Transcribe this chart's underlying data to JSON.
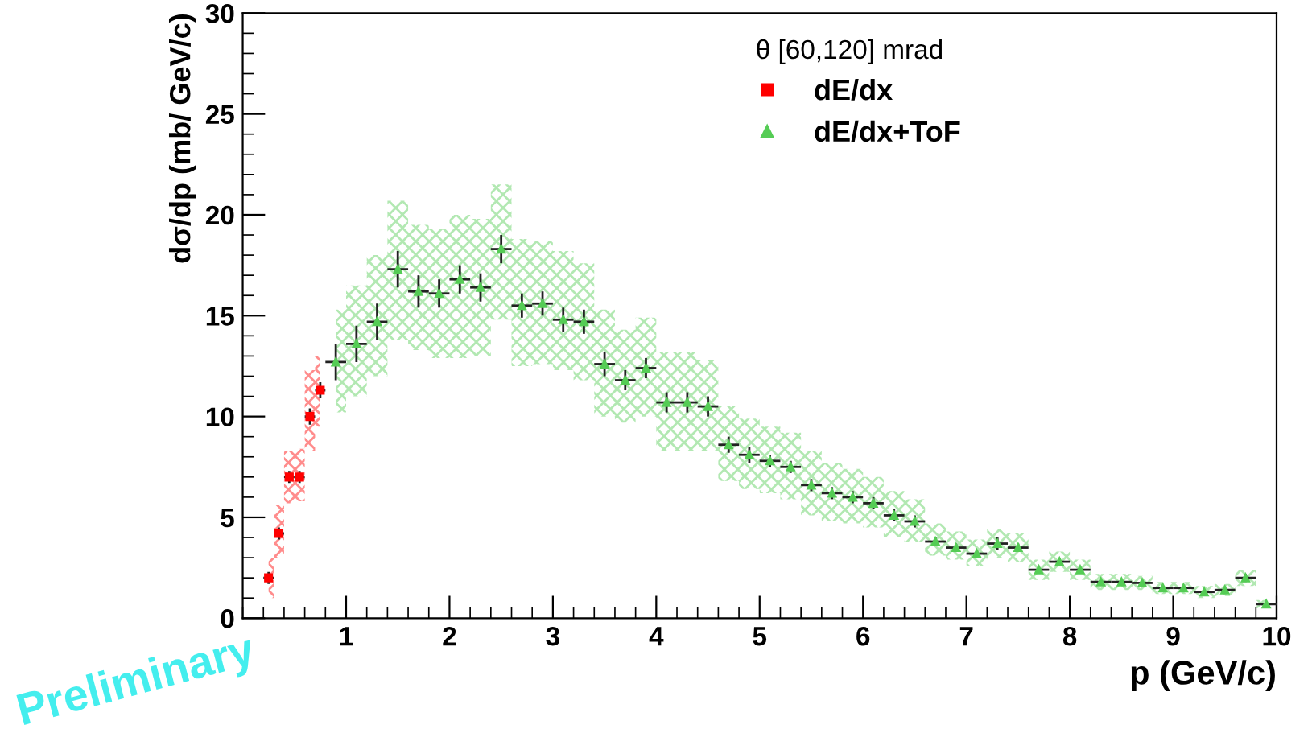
{
  "chart_data": {
    "type": "scatter",
    "xlabel": "p (GeV/c)",
    "ylabel": "dσ/dp (mb/ GeV/c)",
    "legend_title": "θ [60,120] mrad",
    "legend": "top right",
    "grid": false,
    "xlim": [
      0,
      10
    ],
    "xticks": [
      1,
      2,
      3,
      4,
      5,
      6,
      7,
      8,
      9,
      10
    ],
    "ylim": [
      0,
      30
    ],
    "yticks": [
      0,
      5,
      10,
      15,
      20,
      25,
      30
    ],
    "annotations": [
      "Preliminary"
    ],
    "series": [
      {
        "name": "dE/dx",
        "color": "#ff0000",
        "marker": "square",
        "x": [
          0.25,
          0.35,
          0.45,
          0.55,
          0.65,
          0.75
        ],
        "values": [
          2.0,
          4.2,
          7.0,
          7.0,
          10.0,
          11.3
        ],
        "errors": [
          0.3,
          0.3,
          0.3,
          0.3,
          0.4,
          0.4
        ],
        "xerrors": [
          0.05,
          0.05,
          0.05,
          0.05,
          0.05,
          0.05
        ],
        "lower": [
          1.0,
          3.0,
          5.7,
          5.8,
          8.3,
          9.5
        ],
        "upper": [
          3.0,
          5.6,
          8.3,
          8.4,
          12.3,
          13.0
        ]
      },
      {
        "name": "dE/dx+ToF",
        "color": "#55cc55",
        "marker": "triangle",
        "x": [
          0.9,
          1.1,
          1.3,
          1.5,
          1.7,
          1.9,
          2.1,
          2.3,
          2.5,
          2.7,
          2.9,
          3.1,
          3.3,
          3.5,
          3.7,
          3.9,
          4.1,
          4.3,
          4.5,
          4.7,
          4.9,
          5.1,
          5.3,
          5.5,
          5.7,
          5.9,
          6.1,
          6.3,
          6.5,
          6.7,
          6.9,
          7.1,
          7.3,
          7.5,
          7.7,
          7.9,
          8.1,
          8.3,
          8.5,
          8.7,
          8.9,
          9.1,
          9.3,
          9.5,
          9.7,
          9.9
        ],
        "values": [
          12.7,
          13.6,
          14.7,
          17.3,
          16.2,
          16.1,
          16.8,
          16.4,
          18.3,
          15.5,
          15.6,
          14.8,
          14.7,
          12.6,
          11.8,
          12.4,
          10.7,
          10.7,
          10.5,
          8.6,
          8.1,
          7.8,
          7.5,
          6.6,
          6.2,
          6.0,
          5.7,
          5.1,
          4.8,
          3.8,
          3.5,
          3.2,
          3.7,
          3.5,
          2.4,
          2.8,
          2.4,
          1.8,
          1.8,
          1.75,
          1.5,
          1.5,
          1.3,
          1.4,
          2.0,
          0.7
        ],
        "errors": [
          0.9,
          0.9,
          0.9,
          0.9,
          0.8,
          0.7,
          0.7,
          0.7,
          0.7,
          0.6,
          0.6,
          0.6,
          0.6,
          0.6,
          0.5,
          0.5,
          0.5,
          0.5,
          0.5,
          0.4,
          0.4,
          0.3,
          0.3,
          0.3,
          0.3,
          0.3,
          0.3,
          0.3,
          0.3,
          0.2,
          0.2,
          0.2,
          0.3,
          0.2,
          0.1,
          0.2,
          0.1,
          0.1,
          0.1,
          0.1,
          0.1,
          0.1,
          0.1,
          0.1,
          0.2,
          0.1
        ],
        "xerrors": [
          0.1,
          0.1,
          0.1,
          0.1,
          0.1,
          0.1,
          0.1,
          0.1,
          0.1,
          0.1,
          0.1,
          0.1,
          0.1,
          0.1,
          0.1,
          0.1,
          0.1,
          0.1,
          0.1,
          0.1,
          0.1,
          0.1,
          0.1,
          0.1,
          0.1,
          0.1,
          0.1,
          0.1,
          0.1,
          0.1,
          0.1,
          0.1,
          0.1,
          0.1,
          0.1,
          0.1,
          0.1,
          0.1,
          0.1,
          0.1,
          0.1,
          0.1,
          0.1,
          0.1,
          0.1,
          0.1
        ],
        "lower": [
          10.2,
          11.0,
          12.0,
          13.8,
          13.3,
          12.9,
          12.9,
          13.0,
          14.8,
          12.5,
          12.6,
          12.3,
          11.8,
          10.0,
          9.7,
          10.0,
          8.3,
          8.3,
          8.3,
          6.8,
          6.4,
          6.2,
          5.9,
          5.1,
          4.8,
          4.7,
          4.5,
          4.0,
          3.8,
          3.1,
          2.9,
          2.6,
          3.0,
          2.8,
          1.9,
          2.3,
          1.9,
          1.4,
          1.4,
          1.4,
          1.2,
          1.2,
          1.0,
          1.1,
          1.6,
          0.5
        ],
        "upper": [
          15.3,
          16.5,
          18.0,
          20.7,
          19.5,
          19.3,
          20.0,
          19.8,
          21.5,
          18.8,
          18.7,
          18.2,
          17.6,
          15.3,
          14.3,
          14.9,
          13.2,
          13.2,
          12.8,
          10.5,
          9.9,
          9.5,
          9.2,
          8.3,
          7.7,
          7.4,
          7.0,
          6.3,
          5.9,
          4.7,
          4.3,
          3.9,
          4.4,
          4.2,
          2.9,
          3.3,
          2.9,
          2.2,
          2.2,
          2.1,
          1.8,
          1.8,
          1.6,
          1.7,
          2.4,
          0.9
        ]
      }
    ]
  }
}
